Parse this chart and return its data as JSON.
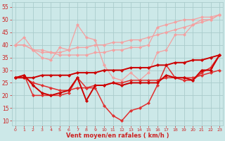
{
  "x": [
    0,
    1,
    2,
    3,
    4,
    5,
    6,
    7,
    8,
    9,
    10,
    11,
    12,
    13,
    14,
    15,
    16,
    17,
    18,
    19,
    20,
    21,
    22,
    23
  ],
  "series": [
    {
      "color": "#f4a0a0",
      "lw": 0.9,
      "ms": 2.2,
      "values": [
        40,
        43,
        38,
        35,
        34,
        39,
        38,
        48,
        43,
        42,
        32,
        27,
        26,
        29,
        26,
        29,
        37,
        38,
        44,
        44,
        48,
        50,
        50,
        52
      ]
    },
    {
      "color": "#f4a0a0",
      "lw": 0.9,
      "ms": 2.2,
      "values": [
        40,
        40,
        38,
        38,
        37,
        37,
        38,
        39,
        39,
        40,
        40,
        41,
        41,
        42,
        42,
        43,
        44,
        45,
        46,
        47,
        48,
        49,
        50,
        52
      ]
    },
    {
      "color": "#f4a0a0",
      "lw": 0.9,
      "ms": 2.2,
      "values": [
        40,
        40,
        38,
        37,
        37,
        36,
        36,
        36,
        36,
        37,
        37,
        38,
        38,
        39,
        39,
        40,
        47,
        48,
        49,
        50,
        50,
        51,
        51,
        52
      ]
    },
    {
      "color": "#e03030",
      "lw": 1.1,
      "ms": 2.2,
      "values": [
        27,
        28,
        20,
        20,
        20,
        20,
        21,
        27,
        23,
        23,
        16,
        12,
        10,
        14,
        15,
        17,
        24,
        32,
        27,
        26,
        26,
        29,
        31,
        36
      ]
    },
    {
      "color": "#e03030",
      "lw": 1.1,
      "ms": 2.2,
      "values": [
        27,
        27,
        25,
        24,
        23,
        22,
        22,
        23,
        23,
        24,
        24,
        25,
        25,
        26,
        26,
        26,
        26,
        27,
        27,
        27,
        27,
        28,
        29,
        30
      ]
    },
    {
      "color": "#cc0000",
      "lw": 1.4,
      "ms": 2.2,
      "values": [
        27,
        28,
        24,
        21,
        20,
        21,
        22,
        27,
        18,
        24,
        24,
        25,
        24,
        25,
        25,
        25,
        25,
        28,
        27,
        27,
        26,
        30,
        30,
        36
      ]
    },
    {
      "color": "#cc0000",
      "lw": 1.4,
      "ms": 2.2,
      "values": [
        27,
        27,
        27,
        28,
        28,
        28,
        28,
        29,
        29,
        29,
        30,
        30,
        30,
        31,
        31,
        31,
        32,
        32,
        33,
        33,
        34,
        34,
        35,
        36
      ]
    }
  ],
  "xlabel": "Vent moyen/en rafales ( km/h )",
  "ylabel_ticks": [
    10,
    15,
    20,
    25,
    30,
    35,
    40,
    45,
    50,
    55
  ],
  "xlim": [
    -0.4,
    23.4
  ],
  "ylim": [
    8,
    57
  ],
  "bg_color": "#cce8e8",
  "grid_color": "#aacccc",
  "tick_color": "#cc2222",
  "label_color": "#cc2222",
  "xlabel_fontsize": 6.0,
  "ytick_fontsize": 5.5,
  "xtick_fontsize": 4.5
}
